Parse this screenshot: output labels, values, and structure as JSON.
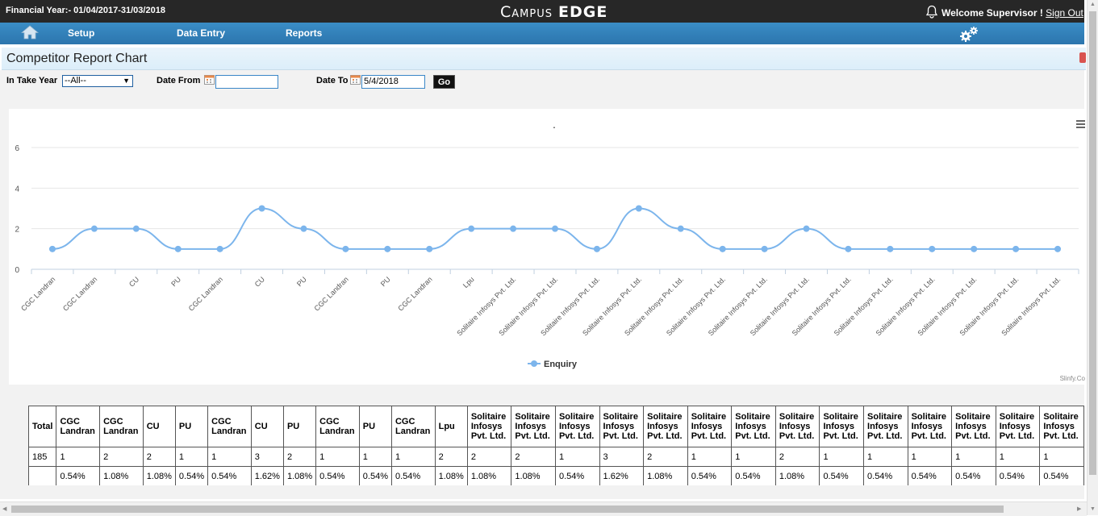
{
  "header": {
    "financial_year": "Financial Year:- 01/04/2017-31/03/2018",
    "logo_campus": "Campus",
    "logo_edge": "EDGE",
    "welcome": "Welcome Supervisor !",
    "sign_out": "Sign Out"
  },
  "nav": {
    "setup": "Setup",
    "data_entry": "Data Entry",
    "reports": "Reports"
  },
  "page": {
    "title": "Competitor Report Chart"
  },
  "filters": {
    "intake_label": "In Take Year",
    "intake_value": "--All--",
    "date_from_label": "Date From",
    "date_from_value": "",
    "date_to_label": "Date To",
    "date_to_value": "5/4/2018",
    "go_label": "Go"
  },
  "chart_data": {
    "type": "line",
    "title": ".",
    "categories": [
      "CGC Landran",
      "CGC Landran",
      "CU",
      "PU",
      "CGC Landran",
      "CU",
      "PU",
      "CGC Landran",
      "PU",
      "CGC Landran",
      "Lpu",
      "Solitaire Infosys Pvt. Ltd.",
      "Solitaire Infosys Pvt. Ltd.",
      "Solitaire Infosys Pvt. Ltd.",
      "Solitaire Infosys Pvt. Ltd.",
      "Solitaire Infosys Pvt. Ltd.",
      "Solitaire Infosys Pvt. Ltd.",
      "Solitaire Infosys Pvt. Ltd.",
      "Solitaire Infosys Pvt. Ltd.",
      "Solitaire Infosys Pvt. Ltd.",
      "Solitaire Infosys Pvt. Ltd.",
      "Solitaire Infosys Pvt. Ltd.",
      "Solitaire Infosys Pvt. Ltd.",
      "Solitaire Infosys Pvt. Ltd.",
      "Solitaire Infosys Pvt. Ltd."
    ],
    "series": [
      {
        "name": "Enquiry",
        "values": [
          1,
          2,
          2,
          1,
          1,
          3,
          2,
          1,
          1,
          1,
          2,
          2,
          2,
          1,
          3,
          2,
          1,
          1,
          2,
          1,
          1,
          1,
          1,
          1,
          1
        ]
      }
    ],
    "yticks": [
      "0",
      "2",
      "4",
      "6"
    ],
    "ylim": [
      0,
      6
    ],
    "grid": true,
    "legend": "bottom-center",
    "line_color": "#7cb5ec",
    "credit": "Slinfy.Co"
  },
  "table": {
    "total_label": "Total",
    "total_value": "185",
    "columns": [
      {
        "name": "CGC Landran",
        "count": "1",
        "pct": "0.54%"
      },
      {
        "name": "CGC Landran",
        "count": "2",
        "pct": "1.08%"
      },
      {
        "name": "CU",
        "count": "2",
        "pct": "1.08%"
      },
      {
        "name": "PU",
        "count": "1",
        "pct": "0.54%"
      },
      {
        "name": "CGC Landran",
        "count": "1",
        "pct": "0.54%"
      },
      {
        "name": "CU",
        "count": "3",
        "pct": "1.62%"
      },
      {
        "name": "PU",
        "count": "2",
        "pct": "1.08%"
      },
      {
        "name": "CGC Landran",
        "count": "1",
        "pct": "0.54%"
      },
      {
        "name": "PU",
        "count": "1",
        "pct": "0.54%"
      },
      {
        "name": "CGC Landran",
        "count": "1",
        "pct": "0.54%"
      },
      {
        "name": "Lpu",
        "count": "2",
        "pct": "1.08%"
      },
      {
        "name": "Solitaire Infosys Pvt. Ltd.",
        "count": "2",
        "pct": "1.08%"
      },
      {
        "name": "Solitaire Infosys Pvt. Ltd.",
        "count": "2",
        "pct": "1.08%"
      },
      {
        "name": "Solitaire Infosys Pvt. Ltd.",
        "count": "1",
        "pct": "0.54%"
      },
      {
        "name": "Solitaire Infosys Pvt. Ltd.",
        "count": "3",
        "pct": "1.62%"
      },
      {
        "name": "Solitaire Infosys Pvt. Ltd.",
        "count": "2",
        "pct": "1.08%"
      },
      {
        "name": "Solitaire Infosys Pvt. Ltd.",
        "count": "1",
        "pct": "0.54%"
      },
      {
        "name": "Solitaire Infosys Pvt. Ltd.",
        "count": "1",
        "pct": "0.54%"
      },
      {
        "name": "Solitaire Infosys Pvt. Ltd.",
        "count": "2",
        "pct": "1.08%"
      },
      {
        "name": "Solitaire Infosys Pvt. Ltd.",
        "count": "1",
        "pct": "0.54%"
      },
      {
        "name": "Solitaire Infosys Pvt. Ltd.",
        "count": "1",
        "pct": "0.54%"
      },
      {
        "name": "Solitaire Infosys Pvt. Ltd.",
        "count": "1",
        "pct": "0.54%"
      },
      {
        "name": "Solitaire Infosys Pvt. Ltd.",
        "count": "1",
        "pct": "0.54%"
      },
      {
        "name": "Solitaire Infosys Pvt. Ltd.",
        "count": "1",
        "pct": "0.54%"
      },
      {
        "name": "Solitaire Infosys Pvt. Ltd.",
        "count": "1",
        "pct": "0.54%"
      }
    ]
  }
}
